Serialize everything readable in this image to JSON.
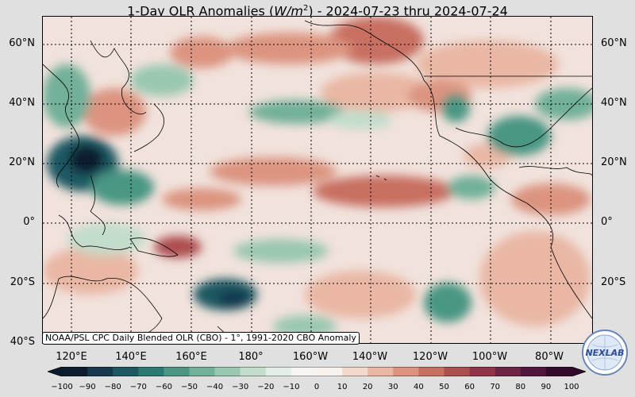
{
  "title": {
    "prefix": "1-Day OLR Anomalies (",
    "unit_base": "W/m",
    "unit_exp": "2",
    "suffix": ") - 2024-07-23 thru 2024-07-24"
  },
  "caption": "NOAA/PSL CPC Daily Blended OLR (CBO) - 1°, 1991-2020 CBO Anomaly",
  "lat_labels": [
    "60°N",
    "40°N",
    "20°N",
    "0°",
    "20°S",
    "40°S"
  ],
  "right_lat_labels": [
    "60°N",
    "40°N",
    "20°N",
    "0°",
    "20°S"
  ],
  "lon_labels": [
    "120°E",
    "140°E",
    "160°E",
    "180°",
    "160°W",
    "140°W",
    "120°W",
    "100°W",
    "80°W"
  ],
  "colorbar": {
    "ticks": [
      "−100",
      "−90",
      "−80",
      "−70",
      "−60",
      "−50",
      "−40",
      "−30",
      "−20",
      "−10",
      "0",
      "10",
      "20",
      "30",
      "40",
      "50",
      "60",
      "70",
      "80",
      "90",
      "100"
    ],
    "colors_negative": [
      "#0d1b2e",
      "#17394d",
      "#1e5862",
      "#2a7a72",
      "#4a9683",
      "#72b09a",
      "#9ac7b1",
      "#c2ddcb",
      "#e3efe6",
      "#f7f5f2"
    ],
    "colors_positive": [
      "#f7f2ee",
      "#f3d9cc",
      "#e9b7a4",
      "#dc9480",
      "#c86f62",
      "#ad4e4f",
      "#8f3449",
      "#6f2444",
      "#50163b",
      "#32092a"
    ]
  },
  "logo": {
    "text": "NEXLAB",
    "icon": "nexlab-globe-logo"
  },
  "map_colors": {
    "ocean_base": "#f1e2dc",
    "land_line": "#000000"
  }
}
